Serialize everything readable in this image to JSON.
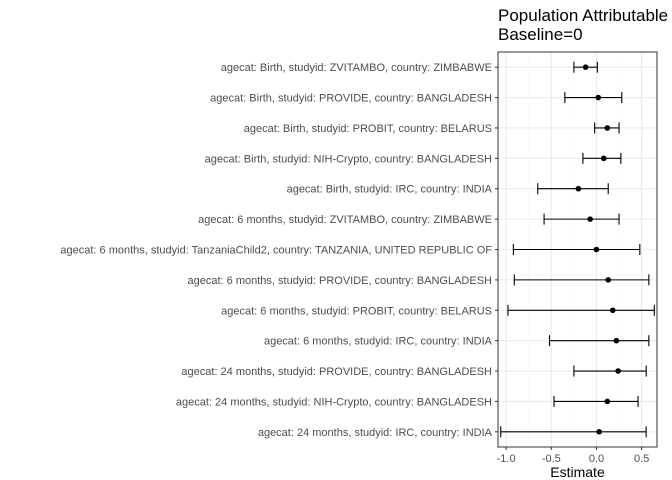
{
  "chart_data": {
    "type": "scatter",
    "title_lines": [
      "Population Attributable",
      "Baseline=0"
    ],
    "xlabel": "Estimate",
    "ylabel": "",
    "xlim": [
      -1.09,
      0.67
    ],
    "x_ticks": [
      -1.0,
      -0.5,
      0.0,
      0.5
    ],
    "x_tick_labels": [
      "-1.0",
      "-0.5",
      "0.0",
      "0.5"
    ],
    "grid": true,
    "colors": {
      "point": "#000000",
      "grid_major": "#ebebeb",
      "grid_minor": "#f5f5f5",
      "border": "#333333"
    },
    "points": [
      {
        "label": "agecat: Birth, studyid: ZVITAMBO, country: ZIMBABWE",
        "estimate": -0.12,
        "lower": -0.25,
        "upper": 0.01
      },
      {
        "label": "agecat: Birth, studyid: PROVIDE, country: BANGLADESH",
        "estimate": 0.02,
        "lower": -0.35,
        "upper": 0.28
      },
      {
        "label": "agecat: Birth, studyid: PROBIT, country: BELARUS",
        "estimate": 0.12,
        "lower": -0.02,
        "upper": 0.25
      },
      {
        "label": "agecat: Birth, studyid: NIH-Crypto, country: BANGLADESH",
        "estimate": 0.08,
        "lower": -0.15,
        "upper": 0.27
      },
      {
        "label": "agecat: Birth, studyid: IRC, country: INDIA",
        "estimate": -0.2,
        "lower": -0.65,
        "upper": 0.13
      },
      {
        "label": "agecat: 6 months, studyid: ZVITAMBO, country: ZIMBABWE",
        "estimate": -0.07,
        "lower": -0.58,
        "upper": 0.25
      },
      {
        "label": "agecat: 6 months, studyid: TanzaniaChild2, country: TANZANIA, UNITED REPUBLIC OF",
        "estimate": 0.0,
        "lower": -0.92,
        "upper": 0.48
      },
      {
        "label": "agecat: 6 months, studyid: PROVIDE, country: BANGLADESH",
        "estimate": 0.13,
        "lower": -0.91,
        "upper": 0.58
      },
      {
        "label": "agecat: 6 months, studyid: PROBIT, country: BELARUS",
        "estimate": 0.18,
        "lower": -0.98,
        "upper": 0.64
      },
      {
        "label": "agecat: 6 months, studyid: IRC, country: INDIA",
        "estimate": 0.22,
        "lower": -0.52,
        "upper": 0.58
      },
      {
        "label": "agecat: 24 months, studyid: PROVIDE, country: BANGLADESH",
        "estimate": 0.24,
        "lower": -0.25,
        "upper": 0.55
      },
      {
        "label": "agecat: 24 months, studyid: NIH-Crypto, country: BANGLADESH",
        "estimate": 0.12,
        "lower": -0.47,
        "upper": 0.46
      },
      {
        "label": "agecat: 24 months, studyid: IRC, country: INDIA",
        "estimate": 0.03,
        "lower": -1.06,
        "upper": 0.55
      }
    ]
  }
}
